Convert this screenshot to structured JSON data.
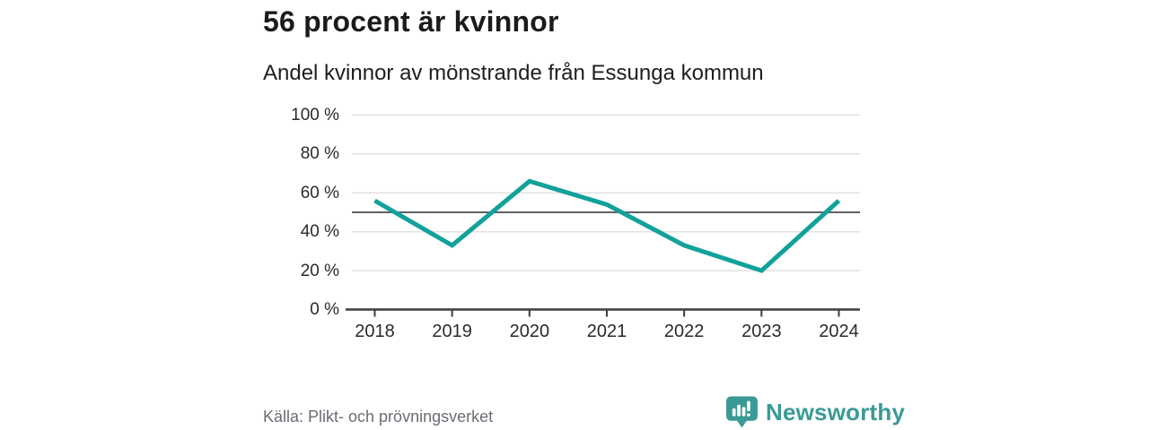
{
  "header": {
    "title": "56 procent är kvinnor",
    "subtitle": "Andel kvinnor av mönstrande från Essunga kommun"
  },
  "chart_data": {
    "type": "line",
    "x": [
      "2018",
      "2019",
      "2020",
      "2021",
      "2022",
      "2023",
      "2024"
    ],
    "series": [
      {
        "name": "Andel kvinnor",
        "values": [
          56,
          33,
          66,
          54,
          33,
          20,
          56
        ]
      }
    ],
    "title": "56 procent är kvinnor",
    "subtitle": "Andel kvinnor av mönstrande från Essunga kommun",
    "xlabel": "",
    "ylabel": "",
    "ylim": [
      0,
      100
    ],
    "yticks": [
      0,
      20,
      40,
      60,
      80,
      100
    ],
    "ytick_suffix": " %",
    "reference_line": 50,
    "grid": "horizontal",
    "legend": "none",
    "colors": {
      "line": "#12a19b",
      "reference_line": "#606060",
      "grid": "#e1e1e1",
      "axis": "#3c3c3c",
      "tick_text": "#2a2a2a"
    }
  },
  "footer": {
    "source": "Källa: Plikt- och prövningsverket",
    "brand": "Newsworthy",
    "brand_color": "#3a9a96"
  }
}
